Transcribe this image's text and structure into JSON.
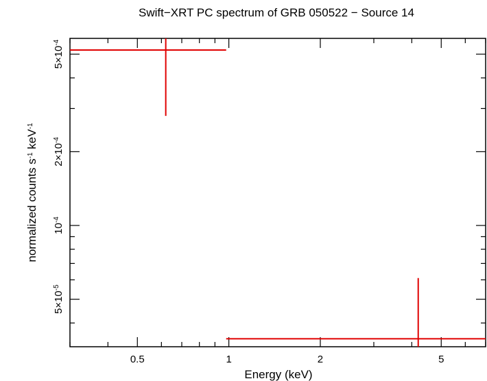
{
  "chart_data": {
    "type": "scatter",
    "title": "Swift−XRT PC spectrum of GRB 050522 − Source 14",
    "xlabel": "Energy (keV)",
    "ylabel": "normalized counts s⁻¹ keV⁻¹",
    "x_scale": "log",
    "y_scale": "log",
    "xlim": [
      0.3,
      7.0
    ],
    "ylim": [
      3.2e-05,
      0.00058
    ],
    "grid": false,
    "legend": "none",
    "x_ticks": [
      {
        "value": 0.5,
        "label": "0.5"
      },
      {
        "value": 1,
        "label": "1"
      },
      {
        "value": 2,
        "label": "2"
      },
      {
        "value": 5,
        "label": "5"
      }
    ],
    "x_minor_ticks": [
      0.3,
      0.4,
      0.6,
      0.7,
      0.8,
      0.9,
      3,
      4,
      6,
      7
    ],
    "y_ticks": [
      {
        "value": 5e-05,
        "label": "5×10⁻⁵"
      },
      {
        "value": 0.0001,
        "label": "10⁻⁴"
      },
      {
        "value": 0.0002,
        "label": "2×10⁻⁴"
      },
      {
        "value": 0.0005,
        "label": "5×10⁻⁴"
      }
    ],
    "y_minor_ticks": [
      4e-05,
      6e-05,
      7e-05,
      8e-05,
      9e-05,
      0.0003,
      0.0004
    ],
    "series": [
      {
        "color": "#e00000",
        "points": [
          {
            "x_low": 0.3,
            "x_high": 0.98,
            "x": 0.62,
            "y": 0.00052,
            "y_low": 0.00028,
            "y_high": 0.00058
          },
          {
            "x_low": 0.98,
            "x_high": 7.0,
            "x": 4.2,
            "y": 3.45e-05,
            "y_low": 3.2e-05,
            "y_high": 6.1e-05
          }
        ]
      }
    ]
  }
}
